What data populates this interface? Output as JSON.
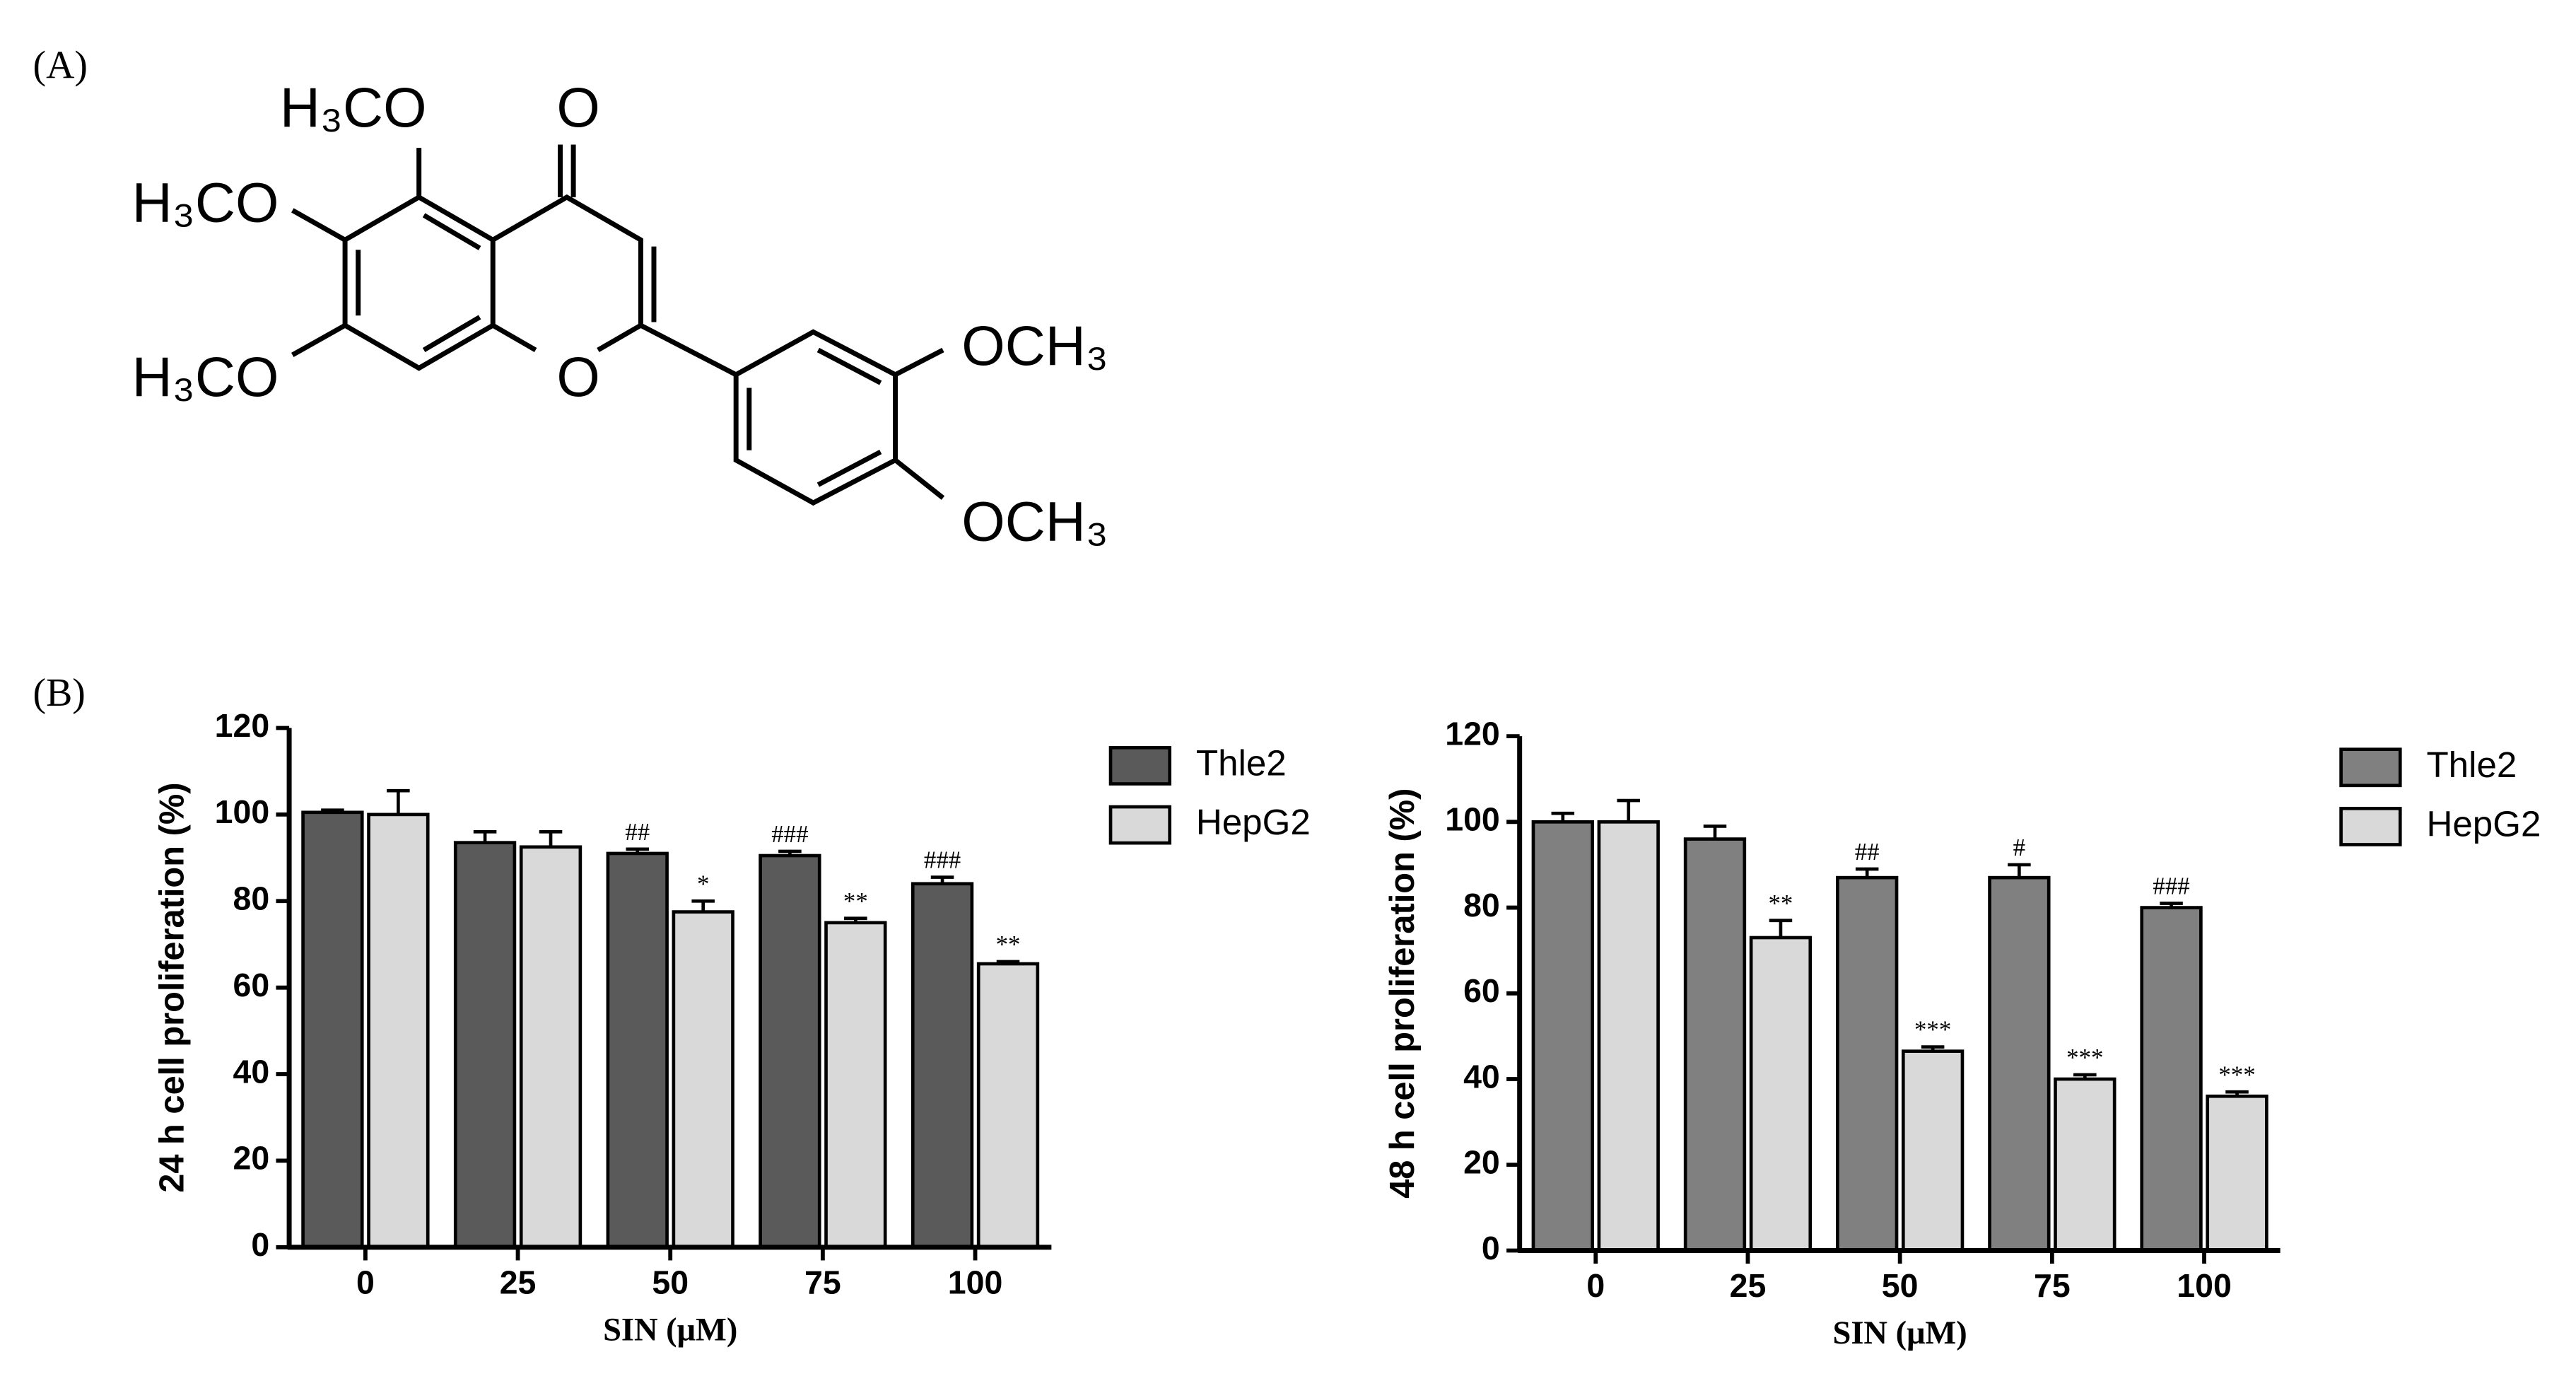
{
  "panel_labels": [
    "(A)",
    "(B)"
  ],
  "structure": {
    "labels": [
      "H₃CO",
      "O",
      "H₃CO",
      "H₃CO",
      "O",
      "OCH₃",
      "OCH₃"
    ]
  },
  "chart_data": [
    {
      "type": "bar",
      "ylabel": "24 h cell proliferation (%)",
      "xlabel": "SIN  (μM)",
      "categories": [
        "0",
        "25",
        "50",
        "75",
        "100"
      ],
      "series": [
        {
          "name": "Thle2",
          "color": "#5a5a5a",
          "values": [
            100.5,
            93.5,
            91,
            90.5,
            84
          ],
          "errors": [
            0.5,
            2.5,
            1,
            1,
            1.5
          ],
          "annotations": [
            null,
            null,
            "##",
            "###",
            "###"
          ]
        },
        {
          "name": "HepG2",
          "color": "#d9d9d9",
          "values": [
            100,
            92.5,
            77.5,
            75,
            65.5
          ],
          "errors": [
            5.5,
            3.5,
            2.5,
            1,
            0.5
          ],
          "annotations": [
            null,
            null,
            "*",
            "**",
            "**"
          ]
        }
      ],
      "ylim": [
        0,
        120
      ],
      "yticks": [
        0,
        20,
        40,
        60,
        80,
        100,
        120
      ]
    },
    {
      "type": "bar",
      "ylabel": "48 h cell proliferation (%)",
      "xlabel": "SIN  (μM)",
      "categories": [
        "0",
        "25",
        "50",
        "75",
        "100"
      ],
      "series": [
        {
          "name": "Thle2",
          "color": "#808080",
          "values": [
            100,
            96,
            87,
            87,
            80
          ],
          "errors": [
            2,
            3,
            2,
            3,
            1
          ],
          "annotations": [
            null,
            null,
            "##",
            "#",
            "###"
          ]
        },
        {
          "name": "HepG2",
          "color": "#d9d9d9",
          "values": [
            100,
            73,
            46.5,
            40,
            36
          ],
          "errors": [
            5,
            4,
            1,
            1,
            1
          ],
          "annotations": [
            null,
            "**",
            "***",
            "***",
            "***"
          ]
        }
      ],
      "ylim": [
        0,
        120
      ],
      "yticks": [
        0,
        20,
        40,
        60,
        80,
        100,
        120
      ]
    }
  ]
}
